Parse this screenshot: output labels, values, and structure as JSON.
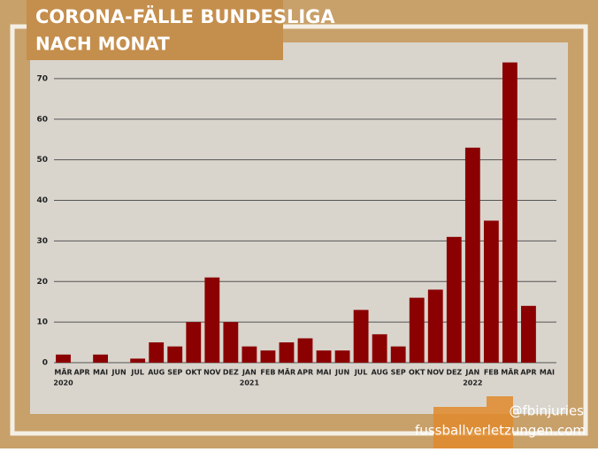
{
  "chart_data": {
    "type": "bar",
    "title": "CORONA-FÄLLE BUNDESLIGA",
    "subtitle": "NACH MONAT",
    "categories": [
      "MÄR",
      "APR",
      "MAI",
      "JUN",
      "JUL",
      "AUG",
      "SEP",
      "OKT",
      "NOV",
      "DEZ",
      "JAN",
      "FEB",
      "MÄR",
      "APR",
      "MAI",
      "JUN",
      "JUL",
      "AUG",
      "SEP",
      "OKT",
      "NOV",
      "DEZ",
      "JAN",
      "FEB",
      "MÄR",
      "APR",
      "MAI"
    ],
    "years": [
      "2020",
      null,
      null,
      null,
      null,
      null,
      null,
      null,
      null,
      null,
      "2021",
      null,
      null,
      null,
      null,
      null,
      null,
      null,
      null,
      null,
      null,
      null,
      "2022",
      null,
      null,
      null,
      null
    ],
    "values": [
      2,
      0,
      2,
      0,
      1,
      5,
      4,
      10,
      21,
      10,
      4,
      3,
      5,
      6,
      3,
      3,
      13,
      7,
      4,
      16,
      18,
      31,
      53,
      35,
      74,
      14,
      0
    ],
    "color": "#8b0000",
    "ylim": [
      0,
      75
    ],
    "yticks": [
      0,
      10,
      20,
      30,
      40,
      50,
      60,
      70
    ],
    "grid": true,
    "handle": "@fbinjuries",
    "website": "fussballverletzungen.com"
  }
}
